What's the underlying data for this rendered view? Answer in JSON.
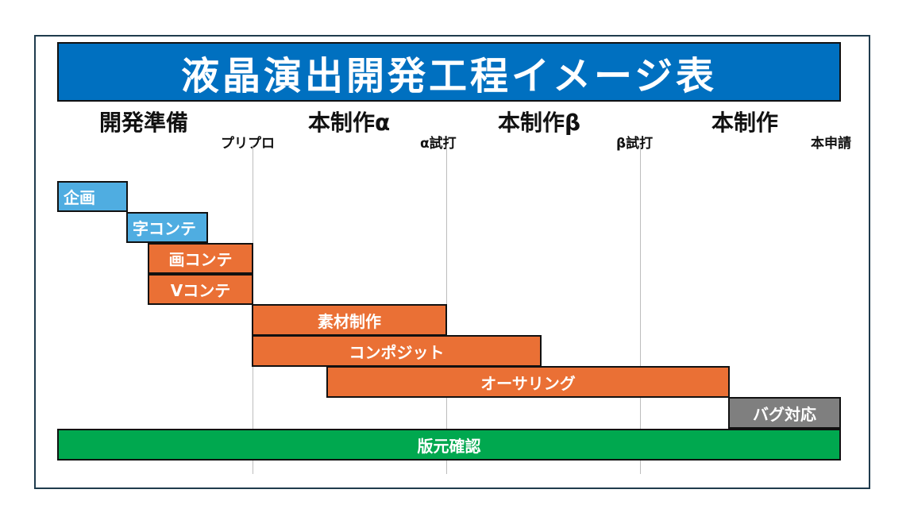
{
  "title": "液晶演出開発工程イメージ表",
  "phases": [
    "開発準備",
    "本制作α",
    "本制作β",
    "本制作"
  ],
  "milestones": [
    "プリプロ",
    "α試打",
    "β試打",
    "本申請"
  ],
  "tasks": [
    {
      "label": "企画"
    },
    {
      "label": "字コンテ"
    },
    {
      "label": "画コンテ"
    },
    {
      "label": "Vコンテ"
    },
    {
      "label": "素材制作"
    },
    {
      "label": "コンポジット"
    },
    {
      "label": "オーサリング"
    },
    {
      "label": "バグ対応"
    },
    {
      "label": "版元確認"
    }
  ],
  "colors": {
    "title": "#0070c0",
    "planning": "#4fade1",
    "production": "#ea7035",
    "bugfix": "#7f7f7f",
    "review": "#00a84f",
    "frame": "#1f3b4d"
  }
}
